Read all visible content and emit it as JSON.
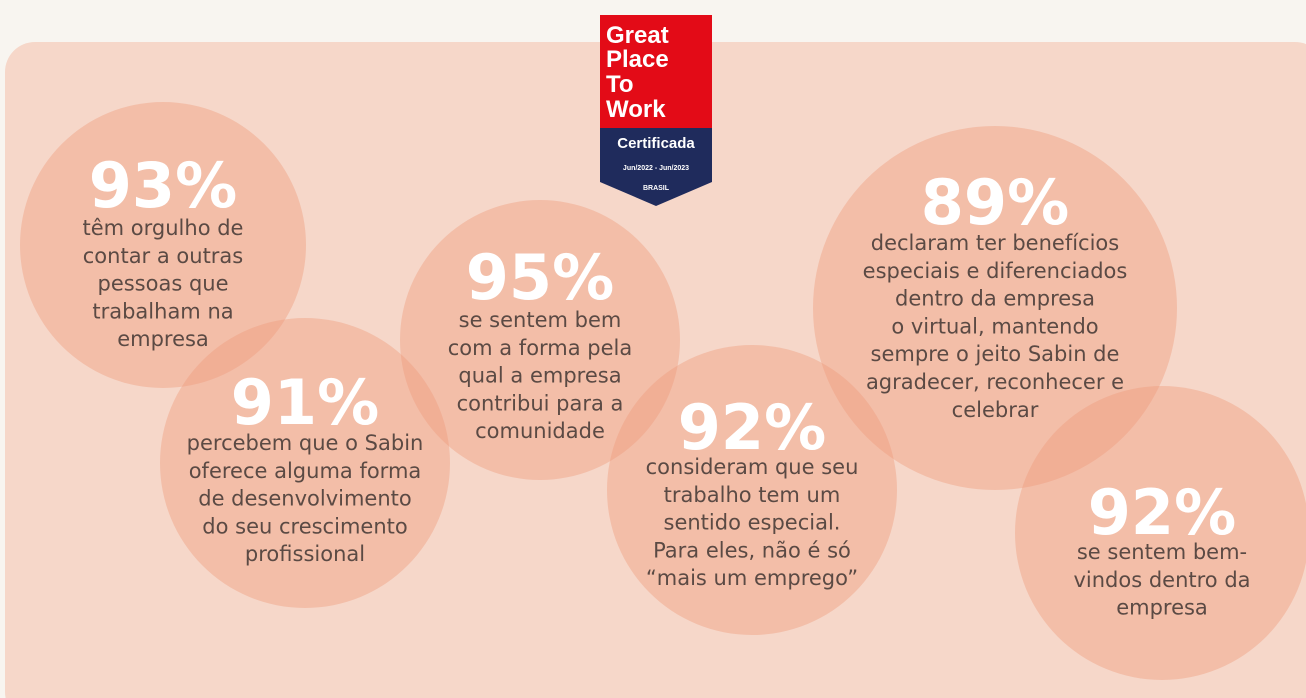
{
  "badge": {
    "lines": [
      "Great",
      "Place",
      "To",
      "Work"
    ],
    "certified": "Certificada",
    "period": "Jun/2022 - Jun/2023",
    "country": "BRASIL"
  },
  "stats": [
    {
      "percent": "93%",
      "lines": [
        "têm orgulho de",
        "contar a outras",
        "pessoas que",
        "trabalham na",
        "empresa"
      ]
    },
    {
      "percent": "91%",
      "lines": [
        "percebem que o Sabin",
        "oferece alguma forma",
        "de desenvolvimento",
        "do seu crescimento",
        "profissional"
      ]
    },
    {
      "percent": "95%",
      "lines": [
        "se sentem bem",
        "com a forma pela",
        "qual a empresa",
        "contribui para a",
        "comunidade"
      ]
    },
    {
      "percent": "92%",
      "lines": [
        "consideram que seu",
        "trabalho tem um",
        "sentido especial.",
        "Para eles, não é só",
        "“mais um emprego”"
      ]
    },
    {
      "percent": "89%",
      "lines": [
        "declaram ter benefícios",
        "especiais e diferenciados",
        "dentro da empresa",
        "o virtual, mantendo",
        "sempre o jeito Sabin de",
        "agradecer, reconhecer e",
        "celebrar"
      ]
    },
    {
      "percent": "92%",
      "lines": [
        "se sentem bem-",
        "vindos dentro da",
        "empresa"
      ]
    }
  ]
}
